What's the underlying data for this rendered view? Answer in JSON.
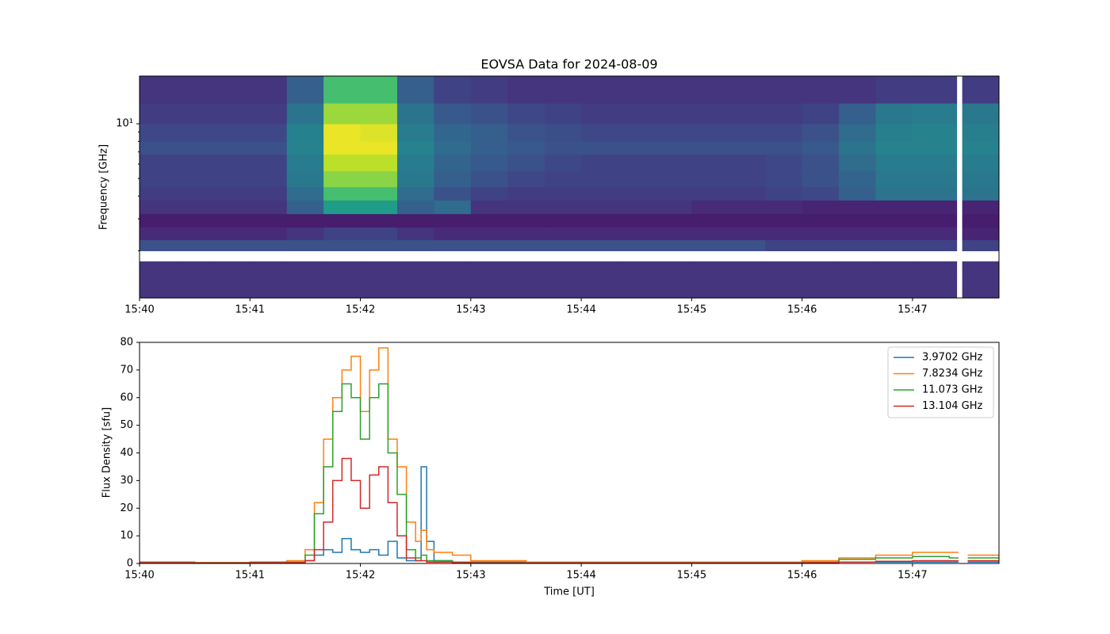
{
  "chart_data": [
    {
      "type": "heatmap",
      "title": "EOVSA Data for 2024-08-09",
      "ylabel": "Frequency [GHz]",
      "colormap": "viridis",
      "clim": [
        0,
        1
      ],
      "yscale": "log",
      "xlim": [
        "15:40:00",
        "15:47:47"
      ],
      "xticks": [
        "15:40",
        "15:41",
        "15:42",
        "15:43",
        "15:44",
        "15:45",
        "15:46",
        "15:47"
      ],
      "ylim": [
        1.1,
        18.3
      ],
      "yticks": [
        {
          "value": 10,
          "label": "10¹"
        }
      ],
      "yminorticks": [
        2,
        3,
        4,
        5,
        6,
        7,
        8,
        9
      ],
      "x_edges": [
        "15:40:00",
        "15:40:20",
        "15:40:40",
        "15:41:00",
        "15:41:20",
        "15:41:40",
        "15:42:00",
        "15:42:20",
        "15:42:40",
        "15:43:00",
        "15:43:20",
        "15:43:40",
        "15:44:00",
        "15:44:20",
        "15:44:40",
        "15:45:00",
        "15:45:20",
        "15:45:40",
        "15:46:00",
        "15:46:20",
        "15:46:40",
        "15:47:00",
        "15:47:20",
        "15:47:24",
        "15:47:27",
        "15:47:47"
      ],
      "y_edges": [
        1.1,
        1.4,
        1.75,
        2.0,
        2.3,
        2.7,
        3.2,
        3.8,
        4.5,
        5.5,
        6.8,
        8.0,
        10,
        13,
        18.3
      ],
      "z": [
        [
          0.15,
          0.15,
          0.15,
          0.15,
          0.15,
          0.15,
          0.15,
          0.15,
          0.15,
          0.15,
          0.15,
          0.15,
          0.15,
          0.15,
          0.15,
          0.15,
          0.15,
          0.15,
          0.15,
          0.15,
          0.15,
          0.15,
          0.15,
          null,
          0.15
        ],
        [
          0.15,
          0.15,
          0.15,
          0.15,
          0.15,
          0.15,
          0.15,
          0.15,
          0.15,
          0.15,
          0.15,
          0.15,
          0.15,
          0.15,
          0.15,
          0.15,
          0.15,
          0.15,
          0.15,
          0.15,
          0.15,
          0.15,
          0.15,
          null,
          0.15
        ],
        [
          null,
          null,
          null,
          null,
          null,
          null,
          null,
          null,
          null,
          null,
          null,
          null,
          null,
          null,
          null,
          null,
          null,
          null,
          null,
          null,
          null,
          null,
          null,
          null,
          null
        ],
        [
          0.25,
          0.25,
          0.25,
          0.25,
          0.25,
          0.25,
          0.25,
          0.25,
          0.25,
          0.25,
          0.25,
          0.25,
          0.25,
          0.25,
          0.25,
          0.25,
          0.25,
          0.2,
          0.2,
          0.2,
          0.2,
          0.2,
          0.2,
          null,
          0.2
        ],
        [
          0.12,
          0.12,
          0.12,
          0.12,
          0.15,
          0.2,
          0.2,
          0.15,
          0.12,
          0.12,
          0.12,
          0.12,
          0.12,
          0.12,
          0.12,
          0.12,
          0.12,
          0.12,
          0.12,
          0.12,
          0.12,
          0.12,
          0.12,
          null,
          0.1
        ],
        [
          0.08,
          0.08,
          0.08,
          0.08,
          0.08,
          0.08,
          0.08,
          0.08,
          0.08,
          0.08,
          0.08,
          0.08,
          0.08,
          0.08,
          0.08,
          0.08,
          0.08,
          0.08,
          0.08,
          0.08,
          0.08,
          0.08,
          0.08,
          null,
          0.08
        ],
        [
          0.15,
          0.15,
          0.15,
          0.15,
          0.3,
          0.55,
          0.55,
          0.3,
          0.35,
          0.15,
          0.15,
          0.15,
          0.15,
          0.15,
          0.15,
          0.12,
          0.12,
          0.12,
          0.1,
          0.1,
          0.1,
          0.1,
          0.1,
          null,
          0.1
        ],
        [
          0.18,
          0.18,
          0.18,
          0.18,
          0.35,
          0.7,
          0.7,
          0.35,
          0.25,
          0.2,
          0.18,
          0.18,
          0.18,
          0.18,
          0.18,
          0.18,
          0.18,
          0.2,
          0.22,
          0.3,
          0.38,
          0.38,
          0.38,
          null,
          0.38
        ],
        [
          0.2,
          0.2,
          0.2,
          0.2,
          0.4,
          0.82,
          0.82,
          0.4,
          0.3,
          0.25,
          0.22,
          0.2,
          0.2,
          0.2,
          0.2,
          0.2,
          0.2,
          0.22,
          0.25,
          0.32,
          0.4,
          0.4,
          0.4,
          null,
          0.4
        ],
        [
          0.2,
          0.2,
          0.2,
          0.2,
          0.42,
          0.9,
          0.9,
          0.42,
          0.32,
          0.28,
          0.25,
          0.22,
          0.2,
          0.2,
          0.2,
          0.2,
          0.2,
          0.22,
          0.25,
          0.35,
          0.42,
          0.42,
          0.42,
          null,
          0.42
        ],
        [
          0.25,
          0.25,
          0.25,
          0.25,
          0.45,
          0.97,
          0.97,
          0.45,
          0.35,
          0.3,
          0.28,
          0.25,
          0.25,
          0.25,
          0.25,
          0.25,
          0.25,
          0.25,
          0.28,
          0.38,
          0.45,
          0.45,
          0.45,
          null,
          0.45
        ],
        [
          0.22,
          0.22,
          0.22,
          0.22,
          0.44,
          0.97,
          0.95,
          0.42,
          0.33,
          0.3,
          0.26,
          0.24,
          0.22,
          0.22,
          0.22,
          0.22,
          0.22,
          0.22,
          0.25,
          0.35,
          0.43,
          0.45,
          0.45,
          null,
          0.43
        ],
        [
          0.18,
          0.18,
          0.18,
          0.18,
          0.38,
          0.85,
          0.85,
          0.38,
          0.28,
          0.25,
          0.22,
          0.2,
          0.18,
          0.18,
          0.18,
          0.18,
          0.18,
          0.18,
          0.2,
          0.3,
          0.4,
          0.42,
          0.42,
          null,
          0.4
        ],
        [
          0.15,
          0.15,
          0.15,
          0.15,
          0.3,
          0.7,
          0.7,
          0.3,
          0.2,
          0.18,
          0.15,
          0.15,
          0.15,
          0.15,
          0.15,
          0.15,
          0.15,
          0.15,
          0.15,
          0.15,
          0.18,
          0.18,
          0.18,
          null,
          0.18
        ]
      ]
    },
    {
      "type": "line",
      "step": "post",
      "xlabel": "Time [UT]",
      "ylabel": "Flux Density [sfu]",
      "legend": "upper right",
      "xlim": [
        "15:40:00",
        "15:47:47"
      ],
      "xticks": [
        "15:40",
        "15:41",
        "15:42",
        "15:43",
        "15:44",
        "15:45",
        "15:46",
        "15:47"
      ],
      "ylim": [
        0,
        80
      ],
      "yticks": [
        0,
        10,
        20,
        30,
        40,
        50,
        60,
        70,
        80
      ],
      "x": [
        "15:40:00",
        "15:40:30",
        "15:41:00",
        "15:41:20",
        "15:41:30",
        "15:41:35",
        "15:41:40",
        "15:41:45",
        "15:41:50",
        "15:41:55",
        "15:42:00",
        "15:42:05",
        "15:42:10",
        "15:42:15",
        "15:42:20",
        "15:42:25",
        "15:42:30",
        "15:42:33",
        "15:42:36",
        "15:42:40",
        "15:42:50",
        "15:43:00",
        "15:43:30",
        "15:44:00",
        "15:45:00",
        "15:45:30",
        "15:46:00",
        "15:46:20",
        "15:46:40",
        "15:47:00",
        "15:47:20",
        "15:47:25",
        "15:47:30",
        "15:47:47"
      ],
      "series": [
        {
          "name": "3.9702 GHz",
          "color": "#1f77b4",
          "values": [
            0.5,
            0.3,
            0.5,
            0.5,
            1,
            3,
            5,
            4,
            9,
            5,
            4,
            5,
            3,
            8,
            2,
            1,
            1,
            35,
            8,
            1,
            0.5,
            0.5,
            0.3,
            0.3,
            0.3,
            0.3,
            0.5,
            0.5,
            0.5,
            0.5,
            0.5,
            null,
            0.5,
            0.5
          ]
        },
        {
          "name": "7.8234 GHz",
          "color": "#ff7f0e",
          "values": [
            0.5,
            0.3,
            0.5,
            1,
            5,
            22,
            45,
            60,
            70,
            75,
            55,
            70,
            78,
            45,
            35,
            15,
            8,
            12,
            5,
            4,
            3,
            1,
            0.5,
            0.5,
            0.5,
            0.5,
            1,
            2,
            3,
            4,
            4,
            null,
            3,
            2.5
          ]
        },
        {
          "name": "11.073 GHz",
          "color": "#2ca02c",
          "values": [
            0.5,
            0.3,
            0.5,
            0.5,
            3,
            18,
            35,
            55,
            65,
            60,
            45,
            60,
            65,
            40,
            25,
            5,
            2,
            3,
            1,
            1,
            0.5,
            0.3,
            0.3,
            0.3,
            0.3,
            0.3,
            0.5,
            1.5,
            2,
            2.5,
            2,
            null,
            2,
            1.5
          ]
        },
        {
          "name": "13.104 GHz",
          "color": "#d62728",
          "values": [
            0.3,
            0.2,
            0.3,
            0.3,
            1,
            5,
            15,
            30,
            38,
            30,
            20,
            32,
            35,
            22,
            10,
            2,
            1,
            1,
            0.5,
            0.5,
            0.3,
            0.2,
            0.2,
            0.2,
            0.2,
            0.2,
            0.3,
            0.5,
            0.8,
            1,
            1,
            null,
            1,
            0.8
          ]
        }
      ]
    }
  ]
}
